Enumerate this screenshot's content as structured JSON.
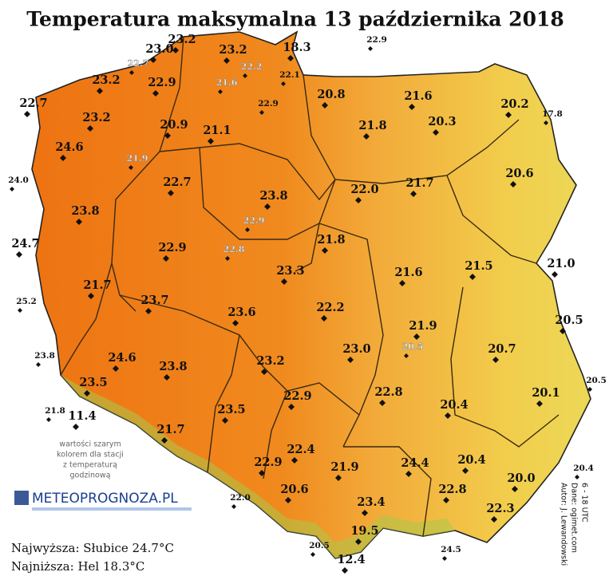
{
  "title": "Temperatura maksymalna 13 października 2018",
  "stations_main": [
    "23.0",
    "23.2",
    "18.3",
    "23.2",
    "23.2",
    "22.9",
    "22.7",
    "20.8",
    "21.6",
    "20.2",
    "23.2",
    "20.9",
    "21.1",
    "21.8",
    "20.3",
    "24.6",
    "22.7",
    "23.8",
    "22.0",
    "21.7",
    "20.6",
    "23.8",
    "24.7",
    "22.9",
    "21.8",
    "21.5",
    "21.0",
    "21.6",
    "23.3",
    "21.7",
    "23.7",
    "23.6",
    "22.2",
    "20.5",
    "21.9",
    "20.7",
    "23.0",
    "24.6",
    "23.8",
    "23.2",
    "23.5",
    "11.4",
    "22.8",
    "20.1",
    "22.9",
    "20.4",
    "23.5",
    "21.7",
    "22.4",
    "20.4",
    "24.4",
    "22.9",
    "21.9",
    "20.0",
    "20.6",
    "22.8",
    "23.4",
    "22.3",
    "19.5",
    "12.4"
  ],
  "stations_small": [
    "22.9",
    "17.8",
    "24.0",
    "25.2",
    "23.8",
    "21.8",
    "20.5",
    "22.0",
    "20.4",
    "20.5",
    "24.5",
    "22.1",
    "22.9"
  ],
  "stations_hourly": [
    "22.7",
    "22.2",
    "21.6",
    "21.9",
    "22.9",
    "22.8",
    "20.5"
  ],
  "note": [
    "wartości szarym",
    "kolorem dla stacji",
    "z temperaturą",
    "godzinową"
  ],
  "logo": "METEOPROGNOZA.PL",
  "highest": "Najwyższa: Słubice 24.7°C",
  "lowest": "Najniższa: Hel 18.3°C",
  "credits": [
    "Autor: J. Lewandowski",
    "Dane: ogimet.com",
    "6 - 18 UTC"
  ]
}
